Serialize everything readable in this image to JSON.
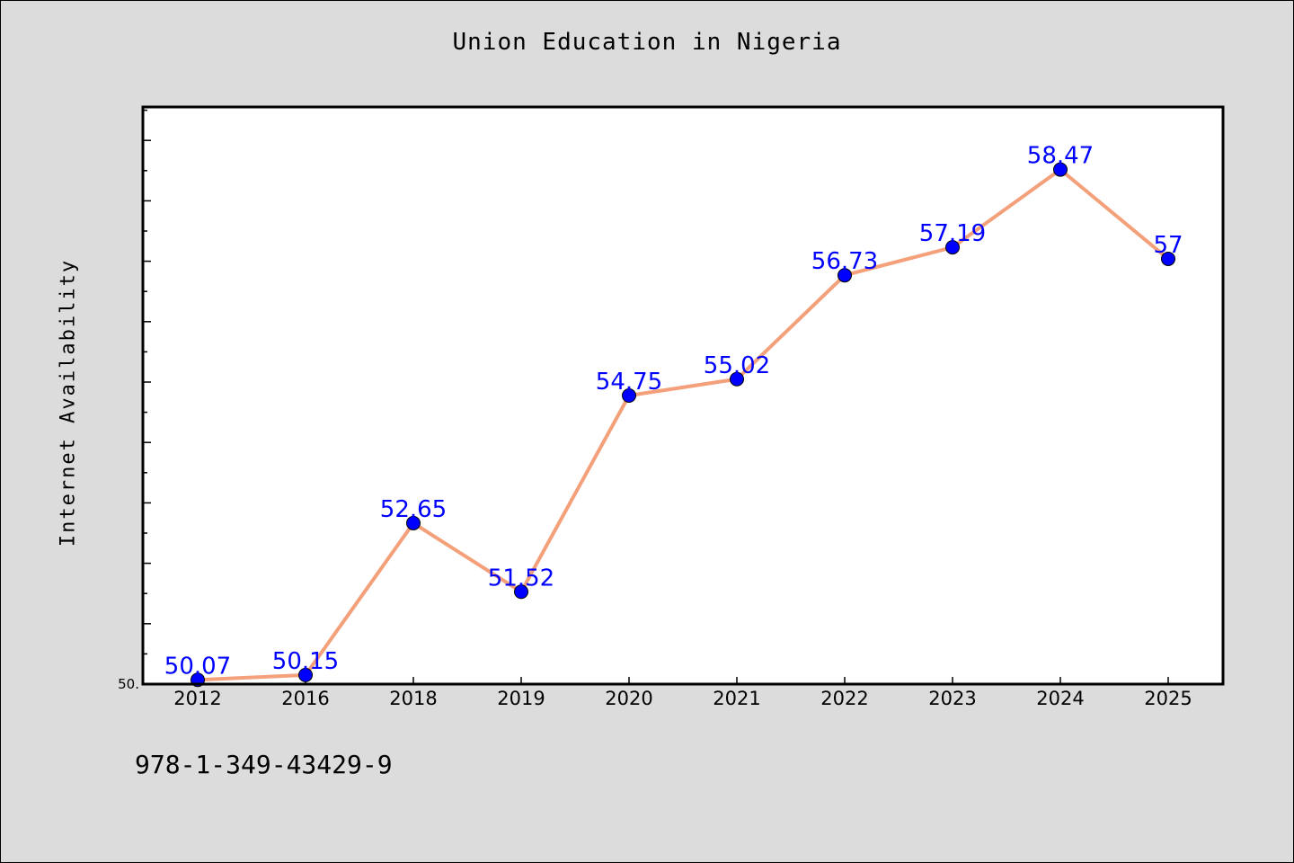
{
  "chart_data": {
    "type": "line",
    "title": "Union Education in Nigeria",
    "xlabel": "",
    "ylabel": "Internet Availability",
    "categories": [
      "2012",
      "2016",
      "2018",
      "2019",
      "2020",
      "2021",
      "2022",
      "2023",
      "2024",
      "2025"
    ],
    "series": [
      {
        "values": [
          50.07,
          50.15,
          52.65,
          51.52,
          54.75,
          55.02,
          56.73,
          57.19,
          58.47,
          57
        ]
      }
    ],
    "data_labels": [
      "50.07",
      "50.15",
      "52.65",
      "51.52",
      "54.75",
      "55.02",
      "56.73",
      "57.19",
      "58.47",
      "57"
    ],
    "ylim": [
      50.0,
      59.5
    ],
    "y_tick_label": "50.",
    "grid": false,
    "legend": "none",
    "colors": {
      "line": "#f4a07a",
      "marker": "#0000ff",
      "data_label": "#0000ff",
      "background": "#dcdcdc",
      "plot_background": "#ffffff"
    }
  },
  "footnote": "978-1-349-43429-9"
}
